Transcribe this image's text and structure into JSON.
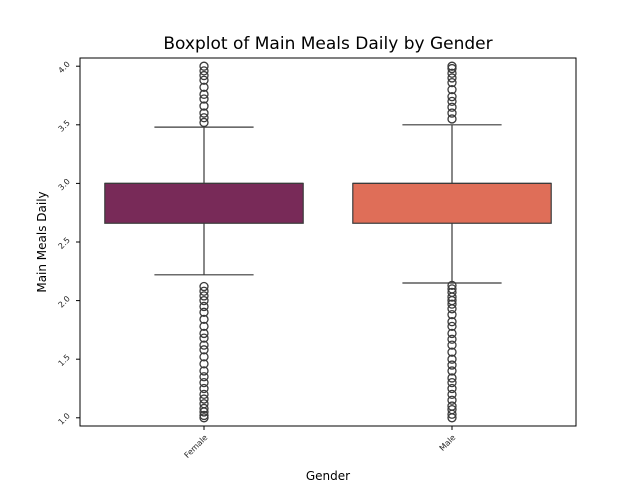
{
  "chart_data": {
    "type": "boxplot",
    "title": "Boxplot of Main Meals Daily by Gender",
    "xlabel": "Gender",
    "ylabel": "Main Meals Daily",
    "categories": [
      "Female",
      "Male"
    ],
    "ylim": [
      0.93,
      4.07
    ],
    "yticks": [
      1.0,
      1.5,
      2.0,
      2.5,
      3.0,
      3.5,
      4.0
    ],
    "ytick_labels": [
      "1.0",
      "1.5",
      "2.0",
      "2.5",
      "3.0",
      "3.5",
      "4.0"
    ],
    "grid": false,
    "boxes": [
      {
        "category": "Female",
        "color": "#782a58",
        "q1": 2.66,
        "median": 3.0,
        "q3": 3.0,
        "whisker_low": 2.22,
        "whisker_high": 3.48,
        "outliers": [
          1.0,
          1.02,
          1.05,
          1.08,
          1.12,
          1.16,
          1.2,
          1.25,
          1.3,
          1.35,
          1.4,
          1.46,
          1.52,
          1.58,
          1.62,
          1.68,
          1.72,
          1.78,
          1.84,
          1.9,
          1.95,
          2.0,
          2.04,
          2.08,
          2.12,
          3.52,
          3.56,
          3.6,
          3.66,
          3.72,
          3.76,
          3.82,
          3.88,
          3.92,
          3.96,
          4.0
        ]
      },
      {
        "category": "Male",
        "color": "#df6e58",
        "q1": 2.66,
        "median": 3.0,
        "q3": 3.0,
        "whisker_low": 2.15,
        "whisker_high": 3.5,
        "outliers": [
          1.0,
          1.03,
          1.07,
          1.1,
          1.15,
          1.2,
          1.25,
          1.3,
          1.34,
          1.4,
          1.45,
          1.5,
          1.56,
          1.62,
          1.67,
          1.72,
          1.78,
          1.82,
          1.88,
          1.93,
          1.97,
          2.0,
          2.03,
          2.07,
          2.1,
          2.13,
          3.55,
          3.6,
          3.65,
          3.7,
          3.74,
          3.8,
          3.86,
          3.9,
          3.94,
          3.98,
          4.0
        ]
      }
    ]
  }
}
